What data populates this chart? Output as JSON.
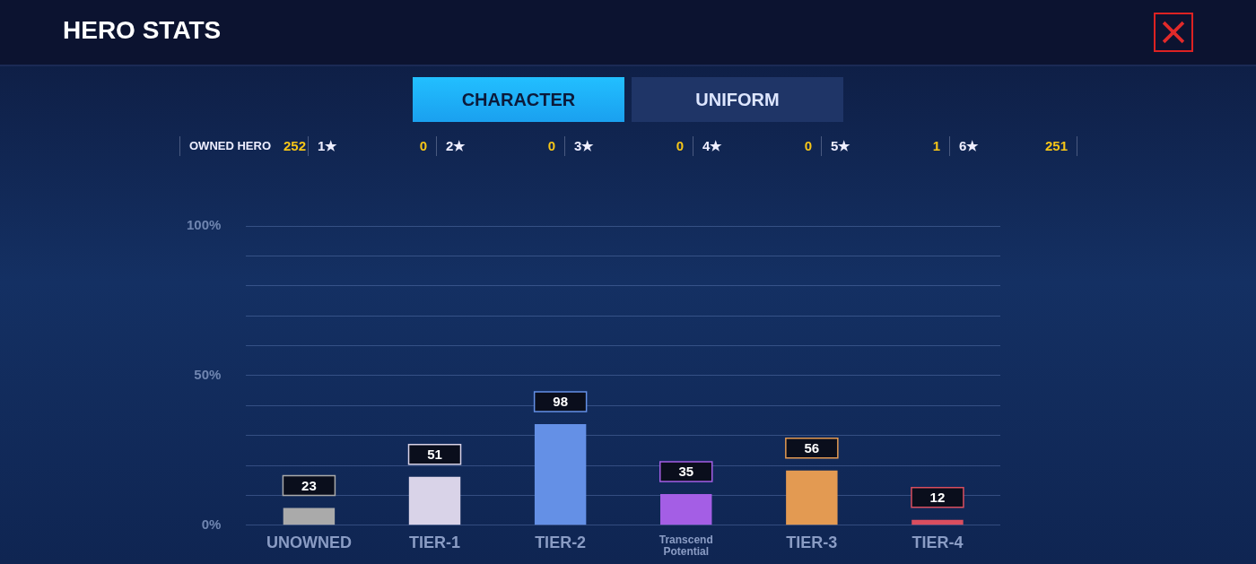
{
  "chart_data": {
    "type": "bar",
    "title": "HERO STATS",
    "categories": [
      "UNOWNED",
      "TIER-1",
      "TIER-2",
      "Transcend Potential",
      "TIER-3",
      "TIER-4"
    ],
    "values": [
      5.8,
      16.2,
      33.8,
      10.4,
      18.3,
      1.8
    ],
    "colors": [
      "#aaaaaa",
      "#d9d3e8",
      "#6490e6",
      "#a45ee5",
      "#e39a52",
      "#d94e5f"
    ],
    "ylim": [
      0,
      100
    ],
    "yticks": [
      {
        "value": 0,
        "label": "0%"
      },
      {
        "value": 10,
        "label": null
      },
      {
        "value": 20,
        "label": null
      },
      {
        "value": 30,
        "label": null
      },
      {
        "value": 40,
        "label": null
      },
      {
        "value": 50,
        "label": "50%"
      },
      {
        "value": 60,
        "label": null
      },
      {
        "value": 70,
        "label": null
      },
      {
        "value": 80,
        "label": null
      },
      {
        "value": 90,
        "label": null
      },
      {
        "value": 100,
        "label": "100%"
      }
    ],
    "grid": "y",
    "annotations": [
      "CHARACTER",
      "UNIFORM",
      "OWNED HERO",
      "252",
      "1★",
      "0",
      "2★",
      "0",
      "3★",
      "0",
      "4★",
      "0",
      "5★",
      "1",
      "6★",
      "251",
      {
        "text": "23",
        "x": "UNOWNED",
        "y": 5.8
      },
      {
        "text": "51",
        "x": "TIER-1",
        "y": 16.2
      },
      {
        "text": "98",
        "x": "TIER-2",
        "y": 33.8
      },
      {
        "text": "35",
        "x": "Transcend Potential",
        "y": 10.4
      },
      {
        "text": "56",
        "x": "TIER-3",
        "y": 18.3
      },
      {
        "text": "12",
        "x": "TIER-4",
        "y": 1.8
      }
    ]
  }
}
